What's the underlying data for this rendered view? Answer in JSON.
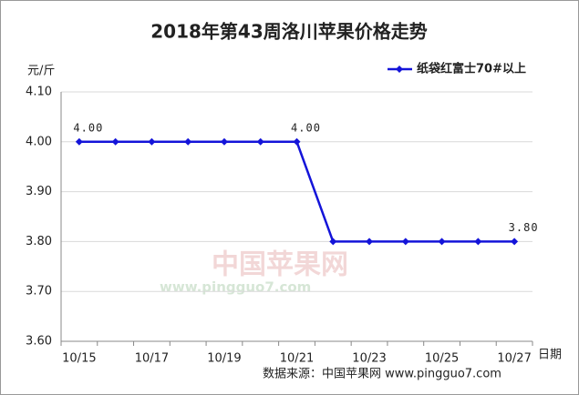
{
  "chart_data": {
    "type": "line",
    "title": "2018年第43周洛川苹果价格走势",
    "y_label": "元/斤",
    "x_label": "日期",
    "source": "数据来源：中国苹果网 www.pingguo7.com",
    "watermark": "中国苹果网",
    "watermark_url": "www.pingguo7.com",
    "categories": [
      "10/15",
      null,
      "10/17",
      null,
      "10/19",
      null,
      "10/21",
      null,
      "10/23",
      null,
      "10/25",
      null,
      "10/27"
    ],
    "series": [
      {
        "name": "纸袋红富士70#以上",
        "color": "#1414d9",
        "values": [
          4.0,
          4.0,
          4.0,
          4.0,
          4.0,
          4.0,
          4.0,
          3.8,
          3.8,
          3.8,
          3.8,
          3.8,
          3.8
        ],
        "value_labels": [
          "4.00",
          null,
          null,
          null,
          null,
          null,
          "4.00",
          null,
          null,
          null,
          null,
          null,
          "3.80"
        ]
      }
    ],
    "ylim": [
      3.6,
      4.1
    ],
    "yticks": [
      {
        "value": 3.6,
        "label": "3.60"
      },
      {
        "value": 3.7,
        "label": "3.70"
      },
      {
        "value": 3.8,
        "label": "3.80"
      },
      {
        "value": 3.9,
        "label": "3.90"
      },
      {
        "value": 4.0,
        "label": "4.00"
      },
      {
        "value": 4.1,
        "label": "4.10"
      }
    ],
    "grid": true,
    "legend": "top-right"
  }
}
